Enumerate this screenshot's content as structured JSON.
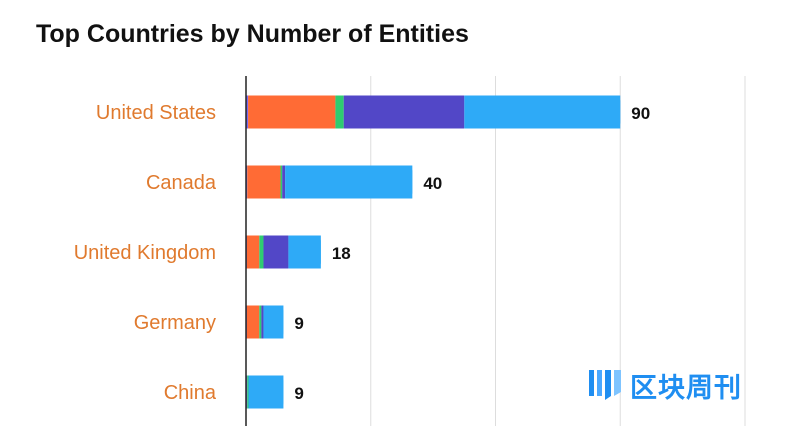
{
  "title": "Top Countries by Number of Entities",
  "watermark": {
    "text": "区块周刊",
    "icon": "blockchain-weekly-logo"
  },
  "chart_data": {
    "type": "bar",
    "orientation": "horizontal",
    "stacked": true,
    "title": "Top Countries by Number of Entities",
    "xlabel": "",
    "ylabel": "",
    "xlim": [
      0,
      120
    ],
    "grid": true,
    "legend": "none",
    "categories": [
      "United States",
      "Canada",
      "United Kingdom",
      "Germany",
      "China"
    ],
    "totals": [
      90,
      40,
      18,
      9,
      9
    ],
    "series_colors": [
      "#7b68ee",
      "#ff6b35",
      "#2ecc71",
      "#5247c7",
      "#2eaaf7"
    ],
    "series": [
      {
        "values": [
          0.5,
          0.3,
          0.2,
          0.2,
          0.3
        ]
      },
      {
        "values": [
          21,
          8,
          3,
          3,
          0
        ]
      },
      {
        "values": [
          2,
          0.4,
          1,
          0.5,
          0.3
        ]
      },
      {
        "values": [
          29,
          0.7,
          6,
          0.5,
          0
        ]
      },
      {
        "values": [
          37.5,
          30.6,
          7.8,
          4.8,
          8.4
        ]
      }
    ]
  }
}
